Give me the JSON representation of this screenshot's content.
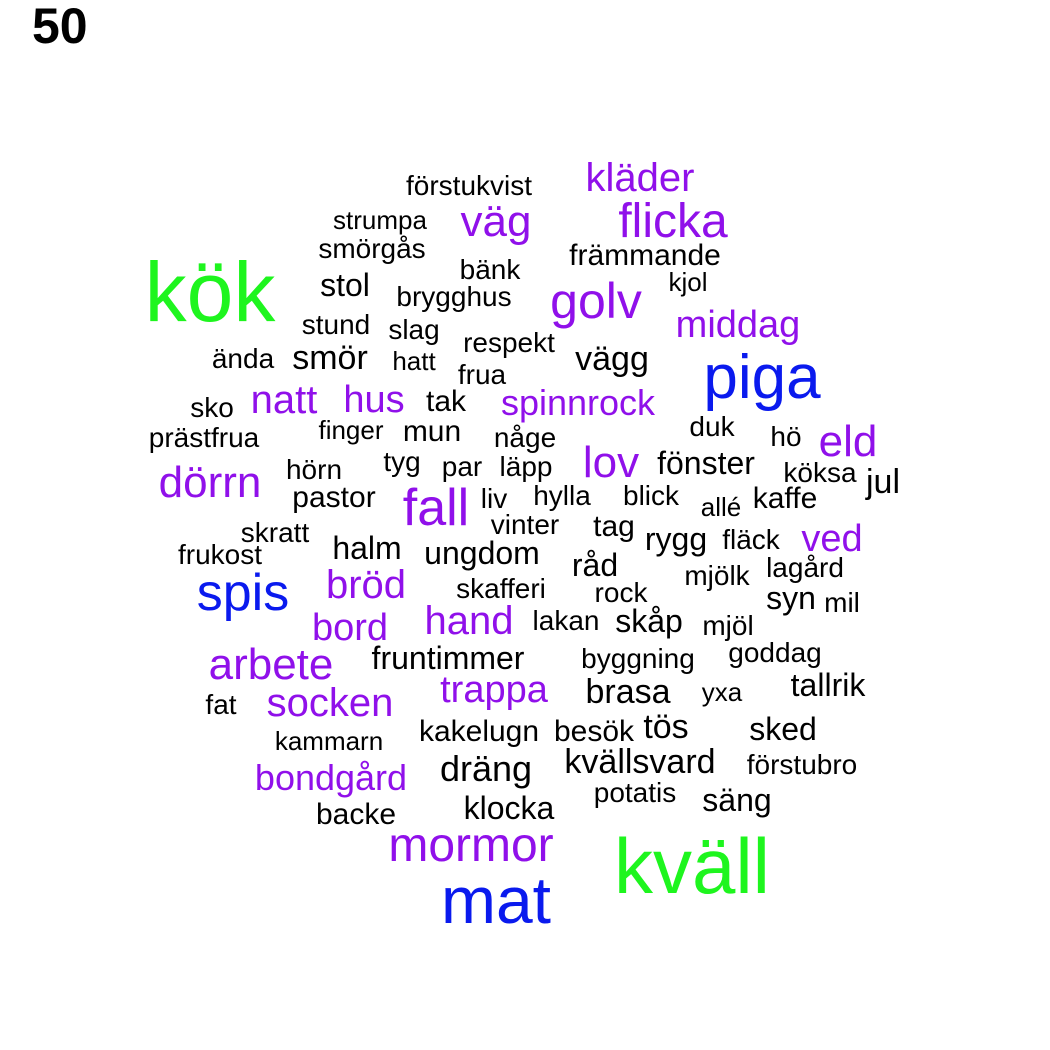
{
  "label": "50",
  "colors": {
    "green": "#1ef51e",
    "blue": "#0a1aee",
    "purple": "#9010ea",
    "black": "#000000"
  },
  "words": [
    {
      "text": "kök",
      "color": "green"
    },
    {
      "text": "kväll",
      "color": "green"
    },
    {
      "text": "mat",
      "color": "blue"
    },
    {
      "text": "piga",
      "color": "blue"
    },
    {
      "text": "spis",
      "color": "blue"
    },
    {
      "text": "mormor",
      "color": "purple"
    },
    {
      "text": "golv",
      "color": "purple"
    },
    {
      "text": "flicka",
      "color": "purple"
    },
    {
      "text": "väg",
      "color": "purple"
    },
    {
      "text": "kläder",
      "color": "purple"
    },
    {
      "text": "middag",
      "color": "purple"
    },
    {
      "text": "natt",
      "color": "purple"
    },
    {
      "text": "hus",
      "color": "purple"
    },
    {
      "text": "spinnrock",
      "color": "purple"
    },
    {
      "text": "lov",
      "color": "purple"
    },
    {
      "text": "eld",
      "color": "purple"
    },
    {
      "text": "dörrn",
      "color": "purple"
    },
    {
      "text": "fall",
      "color": "purple"
    },
    {
      "text": "ved",
      "color": "purple"
    },
    {
      "text": "bröd",
      "color": "purple"
    },
    {
      "text": "bord",
      "color": "purple"
    },
    {
      "text": "hand",
      "color": "purple"
    },
    {
      "text": "arbete",
      "color": "purple"
    },
    {
      "text": "socken",
      "color": "purple"
    },
    {
      "text": "trappa",
      "color": "purple"
    },
    {
      "text": "bondgård",
      "color": "purple"
    },
    {
      "text": "förstukvist",
      "color": "black"
    },
    {
      "text": "strumpa",
      "color": "black"
    },
    {
      "text": "smörgås",
      "color": "black"
    },
    {
      "text": "bänk",
      "color": "black"
    },
    {
      "text": "främmande",
      "color": "black"
    },
    {
      "text": "kjol",
      "color": "black"
    },
    {
      "text": "stol",
      "color": "black"
    },
    {
      "text": "brygghus",
      "color": "black"
    },
    {
      "text": "stund",
      "color": "black"
    },
    {
      "text": "slag",
      "color": "black"
    },
    {
      "text": "respekt",
      "color": "black"
    },
    {
      "text": "ända",
      "color": "black"
    },
    {
      "text": "smör",
      "color": "black"
    },
    {
      "text": "hatt",
      "color": "black"
    },
    {
      "text": "frua",
      "color": "black"
    },
    {
      "text": "vägg",
      "color": "black"
    },
    {
      "text": "sko",
      "color": "black"
    },
    {
      "text": "tak",
      "color": "black"
    },
    {
      "text": "prästfrua",
      "color": "black"
    },
    {
      "text": "finger",
      "color": "black"
    },
    {
      "text": "mun",
      "color": "black"
    },
    {
      "text": "någe",
      "color": "black"
    },
    {
      "text": "duk",
      "color": "black"
    },
    {
      "text": "hö",
      "color": "black"
    },
    {
      "text": "hörn",
      "color": "black"
    },
    {
      "text": "tyg",
      "color": "black"
    },
    {
      "text": "par",
      "color": "black"
    },
    {
      "text": "läpp",
      "color": "black"
    },
    {
      "text": "fönster",
      "color": "black"
    },
    {
      "text": "köksa",
      "color": "black"
    },
    {
      "text": "jul",
      "color": "black"
    },
    {
      "text": "pastor",
      "color": "black"
    },
    {
      "text": "liv",
      "color": "black"
    },
    {
      "text": "hylla",
      "color": "black"
    },
    {
      "text": "blick",
      "color": "black"
    },
    {
      "text": "allé",
      "color": "black"
    },
    {
      "text": "kaffe",
      "color": "black"
    },
    {
      "text": "skratt",
      "color": "black"
    },
    {
      "text": "vinter",
      "color": "black"
    },
    {
      "text": "tag",
      "color": "black"
    },
    {
      "text": "rygg",
      "color": "black"
    },
    {
      "text": "fläck",
      "color": "black"
    },
    {
      "text": "frukost",
      "color": "black"
    },
    {
      "text": "halm",
      "color": "black"
    },
    {
      "text": "ungdom",
      "color": "black"
    },
    {
      "text": "råd",
      "color": "black"
    },
    {
      "text": "mjölk",
      "color": "black"
    },
    {
      "text": "lagård",
      "color": "black"
    },
    {
      "text": "skafferi",
      "color": "black"
    },
    {
      "text": "rock",
      "color": "black"
    },
    {
      "text": "syn",
      "color": "black"
    },
    {
      "text": "mil",
      "color": "black"
    },
    {
      "text": "lakan",
      "color": "black"
    },
    {
      "text": "skåp",
      "color": "black"
    },
    {
      "text": "mjöl",
      "color": "black"
    },
    {
      "text": "fruntimmer",
      "color": "black"
    },
    {
      "text": "byggning",
      "color": "black"
    },
    {
      "text": "goddag",
      "color": "black"
    },
    {
      "text": "brasa",
      "color": "black"
    },
    {
      "text": "yxa",
      "color": "black"
    },
    {
      "text": "tallrik",
      "color": "black"
    },
    {
      "text": "fat",
      "color": "black"
    },
    {
      "text": "kakelugn",
      "color": "black"
    },
    {
      "text": "besök",
      "color": "black"
    },
    {
      "text": "tös",
      "color": "black"
    },
    {
      "text": "sked",
      "color": "black"
    },
    {
      "text": "kammarn",
      "color": "black"
    },
    {
      "text": "dräng",
      "color": "black"
    },
    {
      "text": "kvällsvard",
      "color": "black"
    },
    {
      "text": "förstubro",
      "color": "black"
    },
    {
      "text": "potatis",
      "color": "black"
    },
    {
      "text": "säng",
      "color": "black"
    },
    {
      "text": "klocka",
      "color": "black"
    },
    {
      "text": "backe",
      "color": "black"
    }
  ]
}
